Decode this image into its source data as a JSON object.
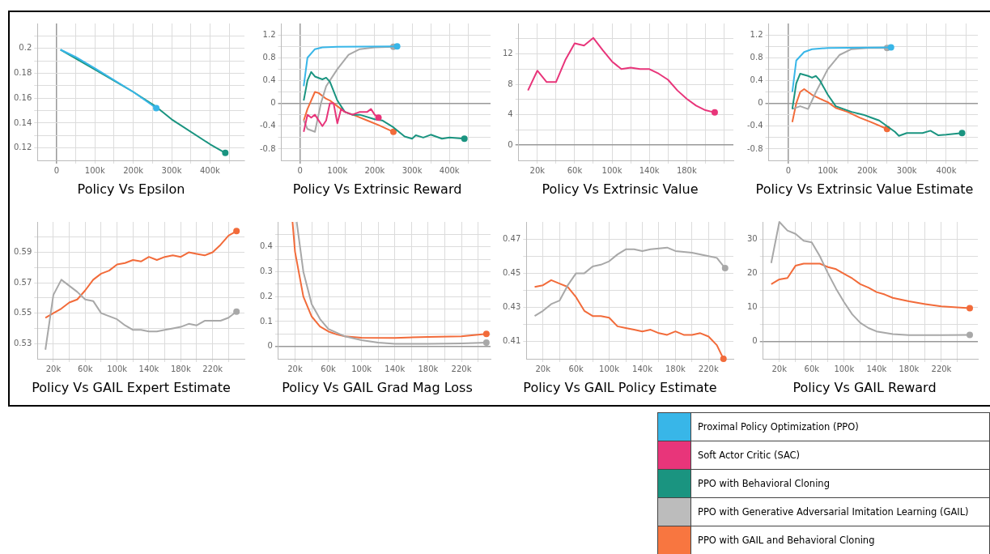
{
  "chart_data": [
    {
      "type": "line",
      "title": "Policy Vs Epsilon",
      "xlim": [
        -50000,
        490000
      ],
      "ylim": [
        0.11,
        0.22
      ],
      "grid": true,
      "legend": false,
      "xticks": [
        {
          "value": 0,
          "label": "0"
        },
        {
          "value": 50000,
          "label": null
        },
        {
          "value": 100000,
          "label": "100k"
        },
        {
          "value": 150000,
          "label": null
        },
        {
          "value": 200000,
          "label": "200k"
        },
        {
          "value": 250000,
          "label": null
        },
        {
          "value": 300000,
          "label": "300k"
        },
        {
          "value": 350000,
          "label": null
        },
        {
          "value": 400000,
          "label": "400k"
        },
        {
          "value": 450000,
          "label": null
        }
      ],
      "yticks": [
        0.12,
        {
          "value": 0.13,
          "label": null
        },
        0.14,
        {
          "value": 0.15,
          "label": null
        },
        0.16,
        {
          "value": 0.17,
          "label": null
        },
        0.18,
        {
          "value": 0.19,
          "label": null
        },
        0.2,
        {
          "value": 0.21,
          "label": null
        }
      ],
      "series": [
        {
          "color": "#38b6e8",
          "x": [
            10000,
            50000,
            100000,
            200000,
            260000
          ],
          "values": [
            0.199,
            0.193,
            0.184,
            0.165,
            0.152
          ]
        },
        {
          "color": "#1a9480",
          "x": [
            10000,
            100000,
            200000,
            260000,
            300000,
            400000,
            440000
          ],
          "values": [
            0.199,
            0.183,
            0.165,
            0.153,
            0.143,
            0.123,
            0.116
          ]
        }
      ]
    },
    {
      "type": "line",
      "title": "Policy Vs Extrinsic Reward",
      "xlim": [
        -50000,
        510000
      ],
      "ylim": [
        -1,
        1.4
      ],
      "grid": true,
      "legend": false,
      "xticks": [
        {
          "value": 0,
          "label": "0"
        },
        {
          "value": 50000,
          "label": null
        },
        {
          "value": 100000,
          "label": "100k"
        },
        {
          "value": 150000,
          "label": null
        },
        {
          "value": 200000,
          "label": "200k"
        },
        {
          "value": 250000,
          "label": null
        },
        {
          "value": 300000,
          "label": "300k"
        },
        {
          "value": 350000,
          "label": null
        },
        {
          "value": 400000,
          "label": "400k"
        },
        {
          "value": 450000,
          "label": null
        }
      ],
      "yticks": [
        -0.8,
        {
          "value": -0.6,
          "label": null
        },
        -0.4,
        {
          "value": -0.2,
          "label": null
        },
        0,
        {
          "value": 0.2,
          "label": null
        },
        0.4,
        {
          "value": 0.6,
          "label": null
        },
        0.8,
        {
          "value": 1,
          "label": null
        },
        1.2
      ],
      "series": [
        {
          "color": "#38b6e8",
          "x": [
            10000,
            20000,
            40000,
            60000,
            100000,
            260000
          ],
          "values": [
            0.3,
            0.8,
            0.95,
            0.98,
            0.99,
            1.0
          ]
        },
        {
          "color": "#e8357a",
          "x": [
            10000,
            20000,
            30000,
            40000,
            60000,
            70000,
            80000,
            90000,
            100000,
            110000,
            120000,
            140000,
            160000,
            180000,
            190000,
            200000,
            210000
          ],
          "values": [
            -0.5,
            -0.2,
            -0.25,
            -0.2,
            -0.4,
            -0.3,
            0,
            0,
            -0.35,
            -0.1,
            -0.15,
            -0.2,
            -0.15,
            -0.15,
            -0.1,
            -0.2,
            -0.25
          ]
        },
        {
          "color": "#1a9480",
          "x": [
            10000,
            20000,
            30000,
            40000,
            60000,
            70000,
            80000,
            100000,
            120000,
            140000,
            160000,
            200000,
            220000,
            250000,
            280000,
            300000,
            310000,
            330000,
            350000,
            380000,
            400000,
            440000
          ],
          "values": [
            0.05,
            0.4,
            0.55,
            0.47,
            0.42,
            0.45,
            0.38,
            0.05,
            -0.15,
            -0.2,
            -0.2,
            -0.28,
            -0.3,
            -0.42,
            -0.58,
            -0.62,
            -0.56,
            -0.6,
            -0.55,
            -0.62,
            -0.6,
            -0.62
          ]
        },
        {
          "color": "#a8a8a8",
          "x": [
            10000,
            20000,
            40000,
            56000,
            70000,
            100000,
            130000,
            160000,
            200000,
            250000
          ],
          "values": [
            -0.3,
            -0.45,
            -0.5,
            0,
            0.3,
            0.6,
            0.85,
            0.95,
            0.98,
            0.99
          ]
        },
        {
          "color": "#f26b3a",
          "x": [
            10000,
            20000,
            40000,
            50000,
            70000,
            80000,
            100000,
            120000,
            150000,
            180000,
            210000,
            250000
          ],
          "values": [
            -0.3,
            -0.1,
            0.2,
            0.18,
            0.08,
            0.05,
            -0.05,
            -0.15,
            -0.22,
            -0.3,
            -0.38,
            -0.5
          ]
        }
      ]
    },
    {
      "type": "line",
      "title": "Policy Vs Extrinsic Value",
      "xlim": [
        0,
        230000
      ],
      "ylim": [
        -2,
        16
      ],
      "grid": true,
      "legend": false,
      "xticks": [
        {
          "value": 20000,
          "label": "20k"
        },
        {
          "value": 40000,
          "label": null
        },
        {
          "value": 60000,
          "label": "60k"
        },
        {
          "value": 80000,
          "label": null
        },
        {
          "value": 100000,
          "label": "100k"
        },
        {
          "value": 120000,
          "label": null
        },
        {
          "value": 140000,
          "label": "140k"
        },
        {
          "value": 160000,
          "label": null
        },
        {
          "value": 180000,
          "label": "180k"
        },
        {
          "value": 200000,
          "label": null
        },
        {
          "value": 220000,
          "label": null
        }
      ],
      "yticks": [
        0,
        {
          "value": 2,
          "label": null
        },
        4,
        {
          "value": 6,
          "label": null
        },
        8,
        {
          "value": 10,
          "label": null
        },
        12,
        {
          "value": 14,
          "label": null
        }
      ],
      "series": [
        {
          "color": "#e8357a",
          "x": [
            10000,
            20000,
            30000,
            40000,
            50000,
            60000,
            70000,
            80000,
            90000,
            100000,
            110000,
            120000,
            130000,
            140000,
            150000,
            160000,
            170000,
            180000,
            190000,
            200000,
            210000
          ],
          "values": [
            7.2,
            9.8,
            8.3,
            8.3,
            11.2,
            13.4,
            13.1,
            14.1,
            12.5,
            11,
            10,
            10.2,
            10,
            10,
            9.4,
            8.6,
            7.2,
            6.1,
            5.2,
            4.6,
            4.3
          ]
        }
      ]
    },
    {
      "type": "line",
      "title": "Policy Vs Extrinsic Value Estimate",
      "xlim": [
        -50000,
        480000
      ],
      "ylim": [
        -1,
        1.4
      ],
      "grid": true,
      "legend": false,
      "xticks": [
        {
          "value": 0,
          "label": "0"
        },
        {
          "value": 50000,
          "label": null
        },
        {
          "value": 100000,
          "label": "100k"
        },
        {
          "value": 150000,
          "label": null
        },
        {
          "value": 200000,
          "label": "200k"
        },
        {
          "value": 250000,
          "label": null
        },
        {
          "value": 300000,
          "label": "300k"
        },
        {
          "value": 350000,
          "label": null
        },
        {
          "value": 400000,
          "label": "400k"
        },
        {
          "value": 450000,
          "label": null
        }
      ],
      "yticks": [
        -0.8,
        {
          "value": -0.6,
          "label": null
        },
        -0.4,
        {
          "value": -0.2,
          "label": null
        },
        0,
        {
          "value": 0.2,
          "label": null
        },
        0.4,
        {
          "value": 0.6,
          "label": null
        },
        0.8,
        {
          "value": 1,
          "label": null
        },
        1.2
      ],
      "series": [
        {
          "color": "#38b6e8",
          "x": [
            10000,
            20000,
            40000,
            60000,
            100000,
            260000
          ],
          "values": [
            0.2,
            0.75,
            0.9,
            0.95,
            0.97,
            0.98
          ]
        },
        {
          "color": "#1a9480",
          "x": [
            10000,
            20000,
            30000,
            50000,
            60000,
            70000,
            80000,
            100000,
            120000,
            140000,
            160000,
            190000,
            210000,
            230000,
            250000,
            270000,
            280000,
            300000,
            340000,
            360000,
            380000,
            400000,
            440000
          ],
          "values": [
            -0.1,
            0.35,
            0.52,
            0.48,
            0.45,
            0.48,
            0.4,
            0.15,
            -0.05,
            -0.1,
            -0.15,
            -0.2,
            -0.25,
            -0.3,
            -0.4,
            -0.5,
            -0.57,
            -0.52,
            -0.52,
            -0.48,
            -0.56,
            -0.55,
            -0.52
          ]
        },
        {
          "color": "#a8a8a8",
          "x": [
            10000,
            30000,
            50000,
            70000,
            100000,
            130000,
            160000,
            200000,
            250000
          ],
          "values": [
            -0.1,
            -0.05,
            -0.1,
            0.2,
            0.6,
            0.85,
            0.95,
            0.97,
            0.97
          ]
        },
        {
          "color": "#f26b3a",
          "x": [
            10000,
            20000,
            30000,
            40000,
            60000,
            80000,
            100000,
            120000,
            150000,
            180000,
            210000,
            250000
          ],
          "values": [
            -0.33,
            0,
            0.2,
            0.25,
            0.15,
            0.08,
            0.02,
            -0.08,
            -0.15,
            -0.25,
            -0.33,
            -0.45
          ]
        }
      ]
    },
    {
      "type": "line",
      "title": "Policy Vs GAIL Expert Estimate",
      "xlim": [
        0,
        260000
      ],
      "ylim": [
        0.52,
        0.61
      ],
      "grid": true,
      "legend": false,
      "xticks": [
        {
          "value": 20000,
          "label": "20k"
        },
        {
          "value": 40000,
          "label": null
        },
        {
          "value": 60000,
          "label": "60k"
        },
        {
          "value": 80000,
          "label": null
        },
        {
          "value": 100000,
          "label": "100k"
        },
        {
          "value": 120000,
          "label": null
        },
        {
          "value": 140000,
          "label": "140k"
        },
        {
          "value": 160000,
          "label": null
        },
        {
          "value": 180000,
          "label": "180k"
        },
        {
          "value": 200000,
          "label": null
        },
        {
          "value": 220000,
          "label": "220k"
        },
        {
          "value": 240000,
          "label": null
        }
      ],
      "yticks": [
        0.53,
        {
          "value": 0.54,
          "label": null
        },
        0.55,
        {
          "value": 0.56,
          "label": null
        },
        0.57,
        {
          "value": 0.58,
          "label": null
        },
        0.59,
        {
          "value": 0.6,
          "label": null
        }
      ],
      "series": [
        {
          "color": "#a8a8a8",
          "x": [
            10000,
            20000,
            30000,
            40000,
            50000,
            60000,
            70000,
            80000,
            90000,
            100000,
            110000,
            120000,
            130000,
            140000,
            150000,
            160000,
            170000,
            180000,
            190000,
            200000,
            210000,
            220000,
            230000,
            240000,
            250000
          ],
          "values": [
            0.526,
            0.562,
            0.572,
            0.568,
            0.564,
            0.559,
            0.558,
            0.55,
            0.548,
            0.546,
            0.542,
            0.539,
            0.539,
            0.538,
            0.538,
            0.539,
            0.54,
            0.541,
            0.543,
            0.542,
            0.545,
            0.545,
            0.545,
            0.547,
            0.551
          ]
        },
        {
          "color": "#f26b3a",
          "x": [
            10000,
            20000,
            30000,
            40000,
            50000,
            60000,
            70000,
            80000,
            90000,
            100000,
            110000,
            120000,
            130000,
            140000,
            150000,
            160000,
            170000,
            180000,
            190000,
            200000,
            210000,
            220000,
            230000,
            240000,
            250000
          ],
          "values": [
            0.547,
            0.55,
            0.553,
            0.557,
            0.559,
            0.565,
            0.572,
            0.576,
            0.578,
            0.582,
            0.583,
            0.585,
            0.584,
            0.587,
            0.585,
            0.587,
            0.588,
            0.587,
            0.59,
            0.589,
            0.588,
            0.59,
            0.595,
            0.601,
            0.604
          ]
        }
      ]
    },
    {
      "type": "line",
      "title": "Policy Vs GAIL Grad Mag Loss",
      "xlim": [
        0,
        255000
      ],
      "ylim": [
        -0.05,
        0.5
      ],
      "grid": true,
      "legend": false,
      "xticks": [
        {
          "value": 20000,
          "label": "20k"
        },
        {
          "value": 40000,
          "label": null
        },
        {
          "value": 60000,
          "label": "60k"
        },
        {
          "value": 80000,
          "label": null
        },
        {
          "value": 100000,
          "label": "100k"
        },
        {
          "value": 120000,
          "label": null
        },
        {
          "value": 140000,
          "label": "140k"
        },
        {
          "value": 160000,
          "label": null
        },
        {
          "value": 180000,
          "label": "180k"
        },
        {
          "value": 200000,
          "label": null
        },
        {
          "value": 220000,
          "label": "220k"
        },
        {
          "value": 240000,
          "label": null
        }
      ],
      "yticks": [
        0,
        {
          "value": 0.05,
          "label": null
        },
        0.1,
        {
          "value": 0.15,
          "label": null
        },
        0.2,
        {
          "value": 0.25,
          "label": null
        },
        0.3,
        {
          "value": 0.35,
          "label": null
        },
        0.4,
        {
          "value": 0.45,
          "label": null
        }
      ],
      "series": [
        {
          "color": "#a8a8a8",
          "x": [
            22000,
            30000,
            40000,
            50000,
            60000,
            80000,
            100000,
            120000,
            140000,
            180000,
            220000,
            250000
          ],
          "values": [
            0.5,
            0.3,
            0.17,
            0.11,
            0.07,
            0.04,
            0.025,
            0.015,
            0.01,
            0.01,
            0.012,
            0.015
          ]
        },
        {
          "color": "#f26b3a",
          "x": [
            17000,
            20000,
            30000,
            40000,
            50000,
            60000,
            70000,
            80000,
            100000,
            140000,
            180000,
            220000,
            250000
          ],
          "values": [
            0.5,
            0.38,
            0.2,
            0.12,
            0.08,
            0.06,
            0.048,
            0.04,
            0.035,
            0.034,
            0.038,
            0.04,
            0.05
          ]
        }
      ]
    },
    {
      "type": "line",
      "title": "Policy Vs GAIL Policy Estimate",
      "xlim": [
        0,
        250000
      ],
      "ylim": [
        0.4,
        0.48
      ],
      "grid": true,
      "legend": false,
      "xticks": [
        {
          "value": 20000,
          "label": "20k"
        },
        {
          "value": 40000,
          "label": null
        },
        {
          "value": 60000,
          "label": "60k"
        },
        {
          "value": 80000,
          "label": null
        },
        {
          "value": 100000,
          "label": "100k"
        },
        {
          "value": 120000,
          "label": null
        },
        {
          "value": 140000,
          "label": "140k"
        },
        {
          "value": 160000,
          "label": null
        },
        {
          "value": 180000,
          "label": "180k"
        },
        {
          "value": 200000,
          "label": null
        },
        {
          "value": 220000,
          "label": "220k"
        },
        {
          "value": 240000,
          "label": null
        }
      ],
      "yticks": [
        0.41,
        {
          "value": 0.42,
          "label": null
        },
        0.43,
        {
          "value": 0.44,
          "label": null
        },
        0.45,
        {
          "value": 0.46,
          "label": null
        },
        0.47
      ],
      "series": [
        {
          "color": "#a8a8a8",
          "x": [
            10000,
            20000,
            30000,
            40000,
            50000,
            60000,
            70000,
            80000,
            90000,
            100000,
            110000,
            120000,
            130000,
            140000,
            150000,
            170000,
            180000,
            200000,
            220000,
            230000,
            240000
          ],
          "values": [
            0.425,
            0.428,
            0.432,
            0.434,
            0.443,
            0.45,
            0.45,
            0.454,
            0.455,
            0.457,
            0.461,
            0.464,
            0.464,
            0.463,
            0.464,
            0.465,
            0.463,
            0.462,
            0.46,
            0.459,
            0.453
          ]
        },
        {
          "color": "#f26b3a",
          "x": [
            10000,
            20000,
            30000,
            40000,
            50000,
            60000,
            70000,
            80000,
            90000,
            100000,
            110000,
            120000,
            130000,
            140000,
            150000,
            160000,
            170000,
            180000,
            190000,
            200000,
            210000,
            220000,
            230000,
            238000
          ],
          "values": [
            0.442,
            0.443,
            0.446,
            0.444,
            0.442,
            0.436,
            0.428,
            0.425,
            0.425,
            0.424,
            0.419,
            0.418,
            0.417,
            0.416,
            0.417,
            0.415,
            0.414,
            0.416,
            0.414,
            0.414,
            0.415,
            0.413,
            0.408,
            0.4
          ]
        }
      ]
    },
    {
      "type": "line",
      "title": "Policy Vs GAIL Reward",
      "xlim": [
        0,
        265000
      ],
      "ylim": [
        -5,
        35
      ],
      "grid": true,
      "legend": false,
      "xticks": [
        {
          "value": 20000,
          "label": "20k"
        },
        {
          "value": 40000,
          "label": null
        },
        {
          "value": 60000,
          "label": "60k"
        },
        {
          "value": 80000,
          "label": null
        },
        {
          "value": 100000,
          "label": "100k"
        },
        {
          "value": 120000,
          "label": null
        },
        {
          "value": 140000,
          "label": "140k"
        },
        {
          "value": 160000,
          "label": null
        },
        {
          "value": 180000,
          "label": "180k"
        },
        {
          "value": 200000,
          "label": null
        },
        {
          "value": 220000,
          "label": "220k"
        },
        {
          "value": 240000,
          "label": null
        }
      ],
      "yticks": [
        0,
        {
          "value": 5,
          "label": null
        },
        10,
        {
          "value": 15,
          "label": null
        },
        20,
        {
          "value": 25,
          "label": null
        },
        30
      ],
      "series": [
        {
          "color": "#a8a8a8",
          "x": [
            10000,
            20000,
            30000,
            40000,
            50000,
            60000,
            70000,
            80000,
            90000,
            100000,
            110000,
            120000,
            130000,
            140000,
            160000,
            180000,
            220000,
            255000
          ],
          "values": [
            23,
            35,
            32.5,
            31.5,
            29.5,
            29,
            25,
            20,
            15.5,
            11.5,
            8,
            5.5,
            4,
            3,
            2.2,
            1.9,
            1.9,
            2
          ]
        },
        {
          "color": "#f26b3a",
          "x": [
            10000,
            20000,
            30000,
            40000,
            50000,
            60000,
            70000,
            80000,
            90000,
            100000,
            110000,
            120000,
            130000,
            140000,
            150000,
            160000,
            180000,
            200000,
            220000,
            255000
          ],
          "values": [
            16.8,
            18.2,
            18.6,
            22.2,
            22.8,
            22.8,
            22.8,
            21.8,
            21.2,
            19.8,
            18.5,
            16.8,
            15.8,
            14.5,
            13.8,
            12.8,
            11.8,
            11,
            10.3,
            9.8
          ]
        }
      ]
    },
    {
      "type": "other",
      "categories": [
        "Proximal Policy Optimization (PPO)",
        "Soft Actor Critic (SAC)",
        "PPO with Behavioral Cloning",
        "PPO with Generative Adversarial Imitation Learning (GAIL)",
        "PPO with GAIL and Behavioral Cloning"
      ],
      "colors": [
        "#38b6e8",
        "#e8357a",
        "#1a9480",
        "#bcbcbc",
        "#f87640"
      ]
    }
  ]
}
